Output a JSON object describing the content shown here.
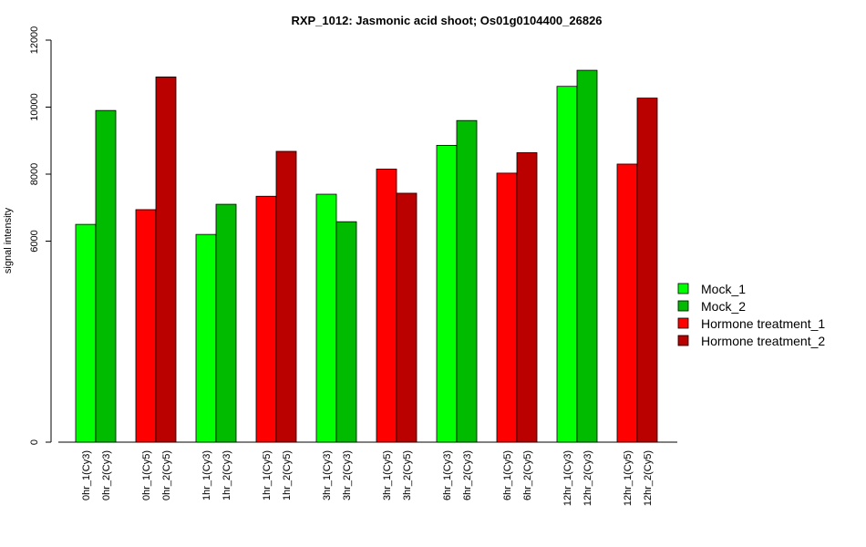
{
  "chart_data": {
    "type": "bar",
    "title": "RXP_1012: Jasmonic acid shoot; Os01g0104400_26826",
    "xlabel": "",
    "ylabel": "signal intensity",
    "ylim": [
      0,
      12000
    ],
    "yticks": [
      0,
      6000,
      8000,
      10000,
      12000
    ],
    "grid": false,
    "legend_position": "right",
    "series": [
      {
        "name": "Mock_1",
        "color": "#00ff00"
      },
      {
        "name": "Mock_2",
        "color": "#00bb00"
      },
      {
        "name": "Hormone treatment_1",
        "color": "#ff0000"
      },
      {
        "name": "Hormone treatment_2",
        "color": "#bb0000"
      }
    ],
    "groups": [
      {
        "bars": [
          {
            "label": "0hr_1(Cy3)",
            "value": 6500,
            "series": 0
          },
          {
            "label": "0hr_2(Cy3)",
            "value": 9900,
            "series": 1
          }
        ]
      },
      {
        "bars": [
          {
            "label": "0hr_1(Cy5)",
            "value": 6940,
            "series": 2
          },
          {
            "label": "0hr_2(Cy5)",
            "value": 10900,
            "series": 3
          }
        ]
      },
      {
        "bars": [
          {
            "label": "1hr_1(Cy3)",
            "value": 6200,
            "series": 0
          },
          {
            "label": "1hr_2(Cy3)",
            "value": 7100,
            "series": 1
          }
        ]
      },
      {
        "bars": [
          {
            "label": "1hr_1(Cy5)",
            "value": 7340,
            "series": 2
          },
          {
            "label": "1hr_2(Cy5)",
            "value": 8680,
            "series": 3
          }
        ]
      },
      {
        "bars": [
          {
            "label": "3hr_1(Cy3)",
            "value": 7400,
            "series": 0
          },
          {
            "label": "3hr_2(Cy3)",
            "value": 6580,
            "series": 1
          }
        ]
      },
      {
        "bars": [
          {
            "label": "3hr_1(Cy5)",
            "value": 8150,
            "series": 2
          },
          {
            "label": "3hr_2(Cy5)",
            "value": 7430,
            "series": 3
          }
        ]
      },
      {
        "bars": [
          {
            "label": "6hr_1(Cy3)",
            "value": 8860,
            "series": 0
          },
          {
            "label": "6hr_2(Cy3)",
            "value": 9600,
            "series": 1
          }
        ]
      },
      {
        "bars": [
          {
            "label": "6hr_1(Cy5)",
            "value": 8030,
            "series": 2
          },
          {
            "label": "6hr_2(Cy5)",
            "value": 8640,
            "series": 3
          }
        ]
      },
      {
        "bars": [
          {
            "label": "12hr_1(Cy3)",
            "value": 10620,
            "series": 0
          },
          {
            "label": "12hr_2(Cy3)",
            "value": 11100,
            "series": 1
          }
        ]
      },
      {
        "bars": [
          {
            "label": "12hr_1(Cy5)",
            "value": 8300,
            "series": 2
          },
          {
            "label": "12hr_2(Cy5)",
            "value": 10270,
            "series": 3
          }
        ]
      }
    ]
  }
}
